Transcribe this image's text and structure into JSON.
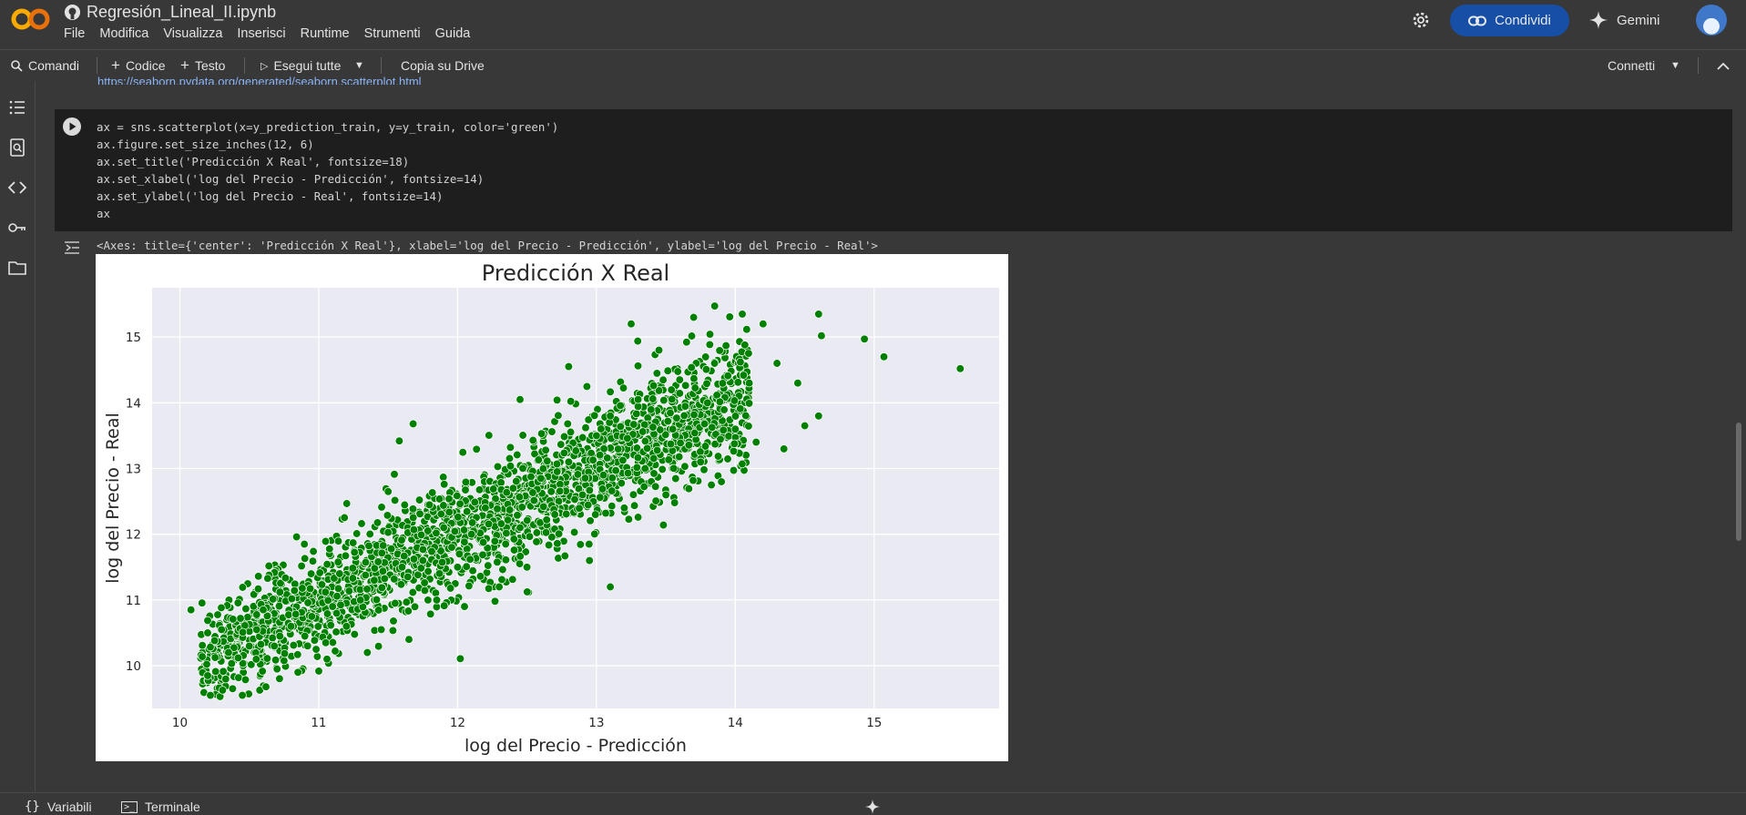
{
  "header": {
    "doc_title": "Regresión_Lineal_II.ipynb",
    "menu": [
      "File",
      "Modifica",
      "Visualizza",
      "Inserisci",
      "Runtime",
      "Strumenti",
      "Guida"
    ],
    "share_label": "Condividi",
    "gemini_label": "Gemini"
  },
  "toolbar": {
    "commands_label": "Comandi",
    "add_code_label": "Codice",
    "add_text_label": "Testo",
    "run_all_label": "Esegui tutte",
    "copy_drive_label": "Copia su Drive",
    "connect_label": "Connetti"
  },
  "main": {
    "prev_link": "https://seaborn.pydata.org/generated/seaborn.scatterplot.html",
    "code_lines": [
      "ax = sns.scatterplot(x=y_prediction_train, y=y_train, color='green')",
      "ax.figure.set_size_inches(12, 6)",
      "ax.set_title('Predicción X Real', fontsize=18)",
      "ax.set_xlabel('log del Precio - Predicción', fontsize=14)",
      "ax.set_ylabel('log del Precio - Real', fontsize=14)",
      "ax"
    ],
    "output_text": "<Axes: title={'center': 'Predicción X Real'}, xlabel='log del Precio - Predicción', ylabel='log del Precio - Real'>"
  },
  "bottom": {
    "variables_label": "Variabili",
    "terminal_label": "Terminale"
  },
  "colors": {
    "accent": "#174ea6",
    "point": "#008000",
    "axes_bg": "#eaeaf2",
    "logo_orange": "#f9ab00"
  },
  "chart_data": {
    "type": "scatter",
    "title": "Predicción X Real",
    "xlabel": "log del Precio - Predicción",
    "ylabel": "log del Precio - Real",
    "xlim": [
      9.8,
      15.9
    ],
    "ylim": [
      9.35,
      15.75
    ],
    "xticks": [
      10,
      11,
      12,
      13,
      14,
      15
    ],
    "yticks": [
      10,
      11,
      12,
      13,
      14,
      15
    ],
    "grid": true,
    "series": [
      {
        "color": "#008000",
        "points": [
          [
            10.08,
            10.85
          ],
          [
            10.2,
            9.85
          ],
          [
            10.22,
            9.55
          ],
          [
            10.2,
            10.5
          ],
          [
            10.25,
            10.38
          ],
          [
            10.3,
            10.55
          ],
          [
            10.35,
            10.2
          ],
          [
            10.38,
            9.65
          ],
          [
            10.42,
            10.12
          ],
          [
            10.45,
            9.55
          ],
          [
            10.5,
            10.3
          ],
          [
            10.55,
            10.1
          ],
          [
            10.6,
            10.85
          ],
          [
            10.62,
            9.68
          ],
          [
            10.68,
            10.3
          ],
          [
            10.72,
            11.12
          ],
          [
            10.8,
            10.6
          ],
          [
            10.85,
            9.9
          ],
          [
            10.9,
            10.45
          ],
          [
            10.95,
            10.75
          ],
          [
            11.0,
            9.92
          ],
          [
            11.05,
            10.35
          ],
          [
            11.1,
            10.9
          ],
          [
            11.15,
            11.4
          ],
          [
            11.2,
            10.6
          ],
          [
            11.3,
            11.0
          ],
          [
            11.35,
            10.2
          ],
          [
            11.4,
            11.3
          ],
          [
            11.45,
            10.55
          ],
          [
            11.55,
            10.95
          ],
          [
            11.6,
            11.5
          ],
          [
            11.65,
            10.4
          ],
          [
            11.58,
            13.42
          ],
          [
            11.68,
            13.68
          ],
          [
            11.75,
            11.6
          ],
          [
            11.85,
            11.0
          ],
          [
            11.9,
            12.1
          ],
          [
            12.0,
            11.5
          ],
          [
            12.05,
            10.9
          ],
          [
            12.1,
            12.0
          ],
          [
            12.2,
            12.4
          ],
          [
            12.3,
            11.2
          ],
          [
            12.4,
            12.7
          ],
          [
            12.45,
            12.1
          ],
          [
            12.5,
            11.5
          ],
          [
            12.6,
            12.85
          ],
          [
            12.7,
            12.3
          ],
          [
            12.8,
            13.1
          ],
          [
            12.9,
            12.6
          ],
          [
            12.95,
            11.6
          ],
          [
            13.0,
            13.5
          ],
          [
            13.05,
            12.9
          ],
          [
            13.1,
            11.2
          ],
          [
            13.1,
            13.8
          ],
          [
            13.2,
            12.4
          ],
          [
            13.3,
            14.05
          ],
          [
            13.35,
            13.0
          ],
          [
            13.45,
            14.8
          ],
          [
            13.5,
            12.6
          ],
          [
            13.55,
            13.6
          ],
          [
            13.6,
            14.35
          ],
          [
            13.7,
            15.3
          ],
          [
            13.75,
            13.1
          ],
          [
            13.8,
            14.0
          ],
          [
            13.85,
            14.6
          ],
          [
            13.9,
            12.8
          ],
          [
            14.0,
            13.6
          ],
          [
            14.05,
            15.35
          ],
          [
            14.1,
            14.3
          ],
          [
            14.15,
            13.4
          ],
          [
            14.2,
            15.2
          ],
          [
            14.3,
            14.6
          ],
          [
            14.35,
            13.3
          ],
          [
            14.45,
            14.3
          ],
          [
            14.5,
            13.65
          ],
          [
            14.6,
            15.35
          ],
          [
            14.62,
            15.02
          ],
          [
            14.6,
            13.8
          ],
          [
            14.93,
            14.97
          ],
          [
            15.07,
            14.7
          ],
          [
            15.62,
            14.52
          ],
          [
            12.45,
            14.05
          ],
          [
            11.5,
            12.65
          ],
          [
            10.7,
            9.95
          ],
          [
            12.8,
            14.55
          ],
          [
            13.25,
            15.2
          ]
        ],
        "trend": {
          "slope": 1.0,
          "intercept": 0.0,
          "x_range": [
            10.15,
            14.1
          ],
          "spread": 0.42,
          "count": 2200
        }
      }
    ]
  }
}
